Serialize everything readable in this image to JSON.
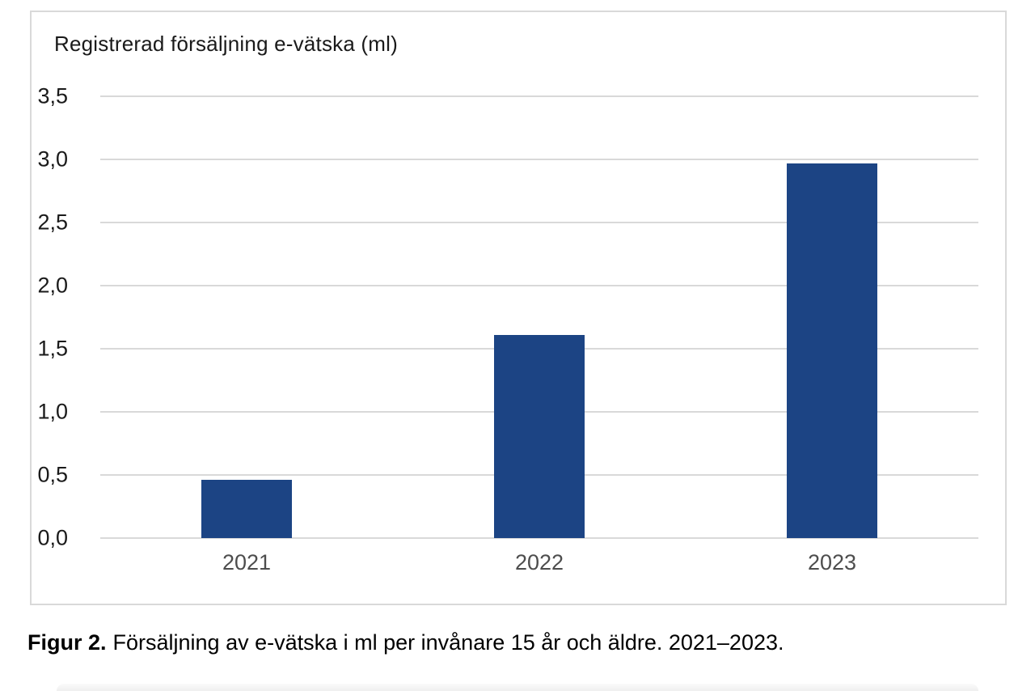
{
  "chart_data": {
    "type": "bar",
    "title": "Registrerad försäljning e-vätska (ml)",
    "categories": [
      "2021",
      "2022",
      "2023"
    ],
    "values": [
      0.46,
      1.61,
      2.97
    ],
    "ylim": [
      0,
      3.5
    ],
    "ytick_step": 0.5,
    "ytick_labels_top_to_bottom": [
      "3,5",
      "3,0",
      "2,5",
      "2,0",
      "1,5",
      "1,0",
      "0,5",
      "0,0"
    ],
    "decimal_separator": ",",
    "grid": true,
    "legend": "none",
    "bar_color": "#1c4484",
    "gridline_color": "#d9d9d9",
    "ytick_color": "#1a1a1a",
    "xtick_color": "#4d4d4d",
    "frame_color": "#d9d9d9"
  },
  "caption": {
    "label": "Figur 2.",
    "text": "Försäljning av e-vätska i ml per invånare 15 år och äldre. 2021–2023."
  }
}
